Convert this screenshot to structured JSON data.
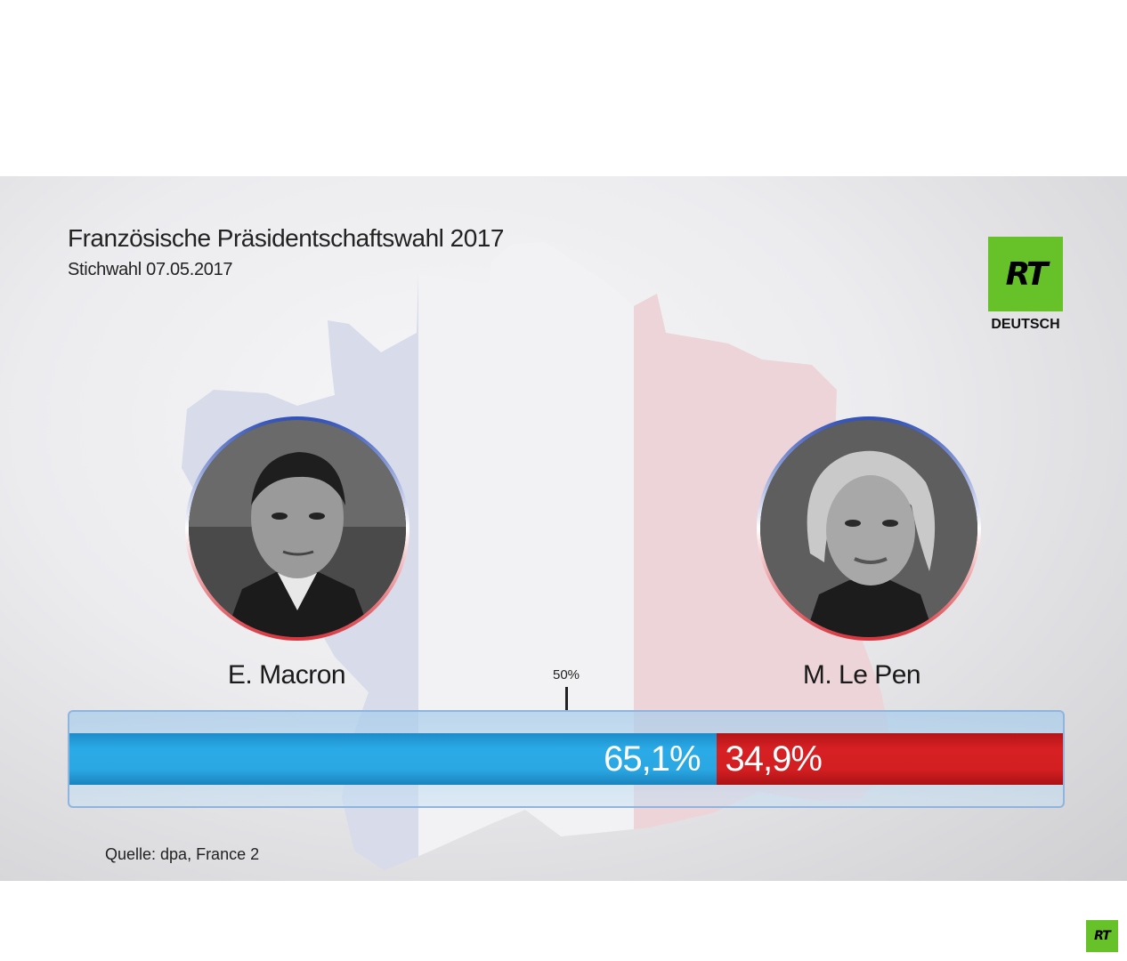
{
  "header": {
    "title": "Französische Präsidentschaftswahl 2017",
    "subtitle": "Stichwahl 07.05.2017"
  },
  "branding": {
    "logo_text": "RT",
    "logo_sub": "DEUTSCH",
    "logo_color": "#67c22a"
  },
  "candidates": [
    {
      "name": "E. Macron",
      "value": 65.1,
      "label": "65,1%",
      "color": "#2aa8e4"
    },
    {
      "name": "M. Le Pen",
      "value": 34.9,
      "label": "34,9%",
      "color": "#d41f22"
    }
  ],
  "marker": {
    "label": "50%",
    "value": 50
  },
  "source": "Quelle:  dpa, France 2",
  "chart_data": {
    "type": "bar",
    "orientation": "horizontal-stacked",
    "title": "Französische Präsidentschaftswahl 2017",
    "subtitle": "Stichwahl 07.05.2017",
    "categories": [
      "E. Macron",
      "M. Le Pen"
    ],
    "values": [
      65.1,
      34.9
    ],
    "value_labels": [
      "65,1%",
      "34,9%"
    ],
    "xlim": [
      0,
      100
    ],
    "reference_line": 50,
    "grid": false,
    "colors": [
      "#2aa8e4",
      "#d41f22"
    ]
  }
}
